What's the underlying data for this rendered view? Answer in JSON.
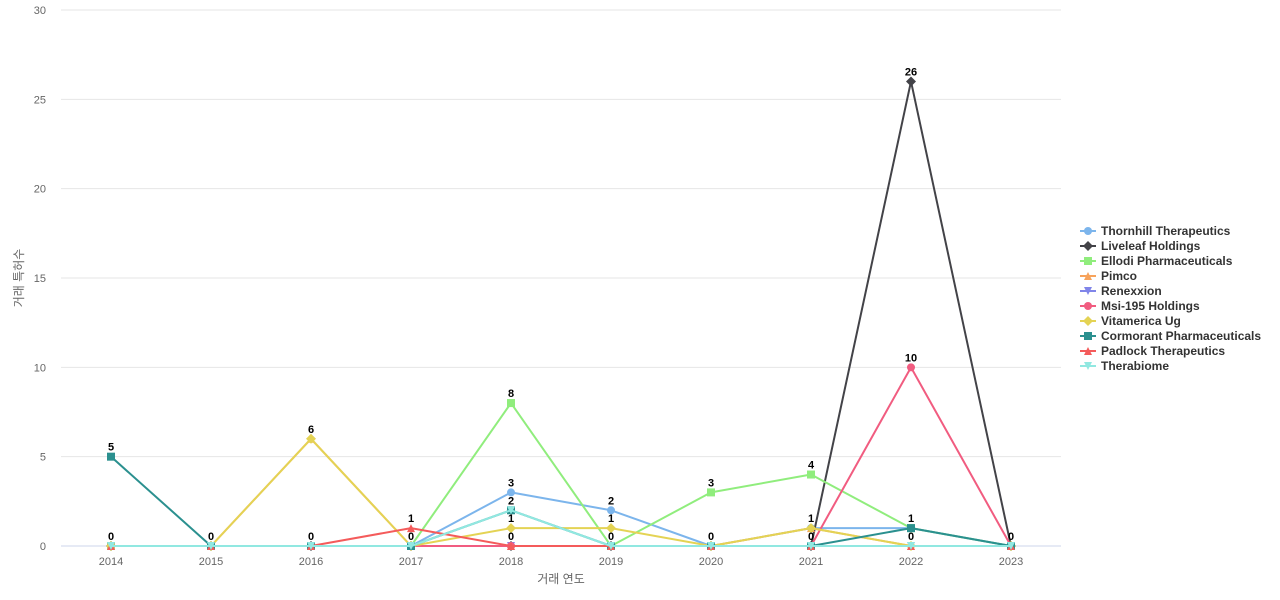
{
  "chart_data": {
    "type": "line",
    "xlabel": "거래 연도",
    "ylabel": "거래 특허수",
    "ylim": [
      0,
      30
    ],
    "yticks": [
      0,
      5,
      10,
      15,
      20,
      25,
      30
    ],
    "x": [
      "2014",
      "2015",
      "2016",
      "2017",
      "2018",
      "2019",
      "2020",
      "2021",
      "2022",
      "2023"
    ],
    "grid": "horizontal",
    "legend_position": "right",
    "series": [
      {
        "name": "Thornhill Therapeutics",
        "color": "#7cb5ec",
        "marker": "circle",
        "values": [
          0,
          0,
          0,
          0,
          3,
          2,
          0,
          1,
          1,
          0
        ]
      },
      {
        "name": "Liveleaf Holdings",
        "color": "#434348",
        "marker": "diamond",
        "values": [
          0,
          0,
          0,
          0,
          0,
          0,
          0,
          0,
          26,
          0
        ]
      },
      {
        "name": "Ellodi Pharmaceuticals",
        "color": "#90ed7d",
        "marker": "square",
        "values": [
          0,
          0,
          0,
          0,
          8,
          0,
          3,
          4,
          1,
          0
        ]
      },
      {
        "name": "Pimco",
        "color": "#f7a35c",
        "marker": "triangle",
        "values": [
          0,
          0,
          6,
          0,
          0,
          0,
          0,
          1,
          0,
          0
        ]
      },
      {
        "name": "Renexxion",
        "color": "#8085e9",
        "marker": "triangle-down",
        "values": [
          0,
          0,
          0,
          0,
          0,
          0,
          0,
          0,
          0,
          0
        ]
      },
      {
        "name": "Msi-195 Holdings",
        "color": "#f15c80",
        "marker": "circle",
        "values": [
          0,
          0,
          0,
          0,
          0,
          0,
          0,
          0,
          10,
          0
        ]
      },
      {
        "name": "Vitamerica Ug",
        "color": "#e4d354",
        "marker": "diamond",
        "values": [
          0,
          0,
          6,
          0,
          1,
          1,
          0,
          1,
          0,
          0
        ]
      },
      {
        "name": "Cormorant Pharmaceuticals",
        "color": "#2b908f",
        "marker": "square",
        "values": [
          5,
          0,
          0,
          0,
          2,
          0,
          0,
          0,
          1,
          0
        ]
      },
      {
        "name": "Padlock Therapeutics",
        "color": "#f45b5b",
        "marker": "triangle",
        "values": [
          0,
          0,
          0,
          1,
          0,
          0,
          0,
          0,
          0,
          0
        ]
      },
      {
        "name": "Therabiome",
        "color": "#91e8e1",
        "marker": "triangle-down",
        "values": [
          0,
          0,
          0,
          0,
          2,
          0,
          0,
          0,
          0,
          0
        ]
      }
    ],
    "data_labels": [
      {
        "x": "2014",
        "value": "5"
      },
      {
        "x": "2014",
        "value": "0"
      },
      {
        "x": "2015",
        "value": "0"
      },
      {
        "x": "2016",
        "value": "6"
      },
      {
        "x": "2016",
        "value": "0"
      },
      {
        "x": "2017",
        "value": "1"
      },
      {
        "x": "2017",
        "value": "0"
      },
      {
        "x": "2018",
        "value": "8"
      },
      {
        "x": "2018",
        "value": "3"
      },
      {
        "x": "2018",
        "value": "2"
      },
      {
        "x": "2018",
        "value": "1"
      },
      {
        "x": "2018",
        "value": "0"
      },
      {
        "x": "2019",
        "value": "2"
      },
      {
        "x": "2019",
        "value": "1"
      },
      {
        "x": "2019",
        "value": "0"
      },
      {
        "x": "2020",
        "value": "3"
      },
      {
        "x": "2020",
        "value": "0"
      },
      {
        "x": "2021",
        "value": "4"
      },
      {
        "x": "2021",
        "value": "1"
      },
      {
        "x": "2021",
        "value": "0"
      },
      {
        "x": "2022",
        "value": "26"
      },
      {
        "x": "2022",
        "value": "10"
      },
      {
        "x": "2022",
        "value": "1"
      },
      {
        "x": "2022",
        "value": "0"
      },
      {
        "x": "2023",
        "value": "0"
      }
    ]
  }
}
